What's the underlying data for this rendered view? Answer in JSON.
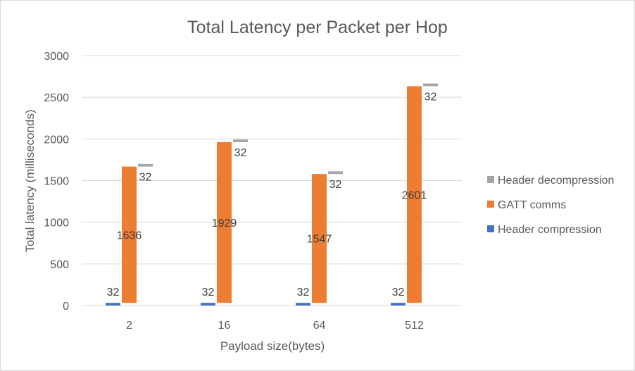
{
  "chart_data": {
    "type": "bar",
    "title": "Total Latency per Packet per Hop",
    "xlabel": "Payload size(bytes)",
    "ylabel": "Total latency (milliseconds)",
    "categories": [
      "2",
      "16",
      "64",
      "512"
    ],
    "ylim": [
      0,
      3000
    ],
    "yticks": [
      0,
      500,
      1000,
      1500,
      2000,
      2500,
      3000
    ],
    "grid": true,
    "legend_position": "right",
    "series": [
      {
        "name": "Header compression",
        "values": [
          32,
          32,
          32,
          32
        ],
        "color": "#4472c4"
      },
      {
        "name": "GATT comms",
        "values": [
          1636,
          1929,
          1547,
          2601
        ],
        "color": "#ed7d31"
      },
      {
        "name": "Header decompression",
        "values": [
          32,
          32,
          32,
          32
        ],
        "color": "#a5a5a5"
      }
    ]
  }
}
